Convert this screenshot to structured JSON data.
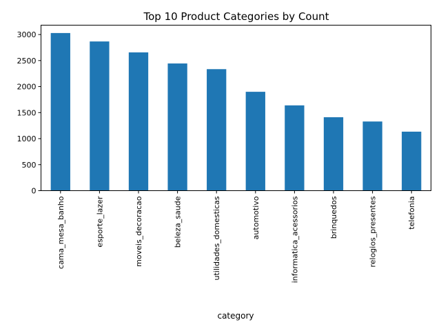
{
  "chart_data": {
    "type": "bar",
    "title": "Top 10 Product Categories by Count",
    "xlabel": "category",
    "ylabel": "",
    "categories": [
      "cama_mesa_banho",
      "esporte_lazer",
      "moveis_decoracao",
      "beleza_saude",
      "utilidades_domesticas",
      "automotivo",
      "informatica_acessorios",
      "brinquedos",
      "relogios_presentes",
      "telefonia"
    ],
    "values": [
      3029,
      2867,
      2657,
      2444,
      2335,
      1900,
      1639,
      1411,
      1329,
      1134
    ],
    "yticks": [
      0,
      500,
      1000,
      1500,
      2000,
      2500,
      3000
    ],
    "ylim": [
      0,
      3180
    ],
    "bar_color": "#1f77b4",
    "grid": false,
    "legend": "none"
  }
}
